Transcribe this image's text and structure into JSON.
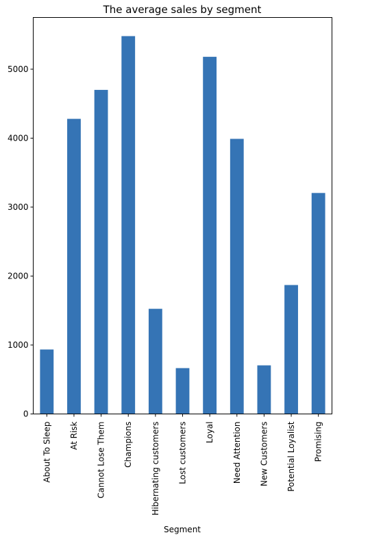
{
  "chart_data": {
    "type": "bar",
    "title": "The average sales by segment",
    "xlabel": "Segment",
    "ylabel": "",
    "categories": [
      "About To Sleep",
      "At Risk",
      "Cannot Lose Them",
      "Champions",
      "Hibernating customers",
      "Lost customers",
      "Loyal",
      "Need Attention",
      "New Customers",
      "Potential Loyalist",
      "Promising"
    ],
    "values": [
      935,
      4280,
      4700,
      5480,
      1525,
      665,
      5180,
      3990,
      705,
      1870,
      3205
    ],
    "ylim": [
      0,
      5750
    ],
    "yticks": [
      0,
      1000,
      2000,
      3000,
      4000,
      5000
    ],
    "bar_color": "#3574b5",
    "grid": false,
    "legend": false
  }
}
